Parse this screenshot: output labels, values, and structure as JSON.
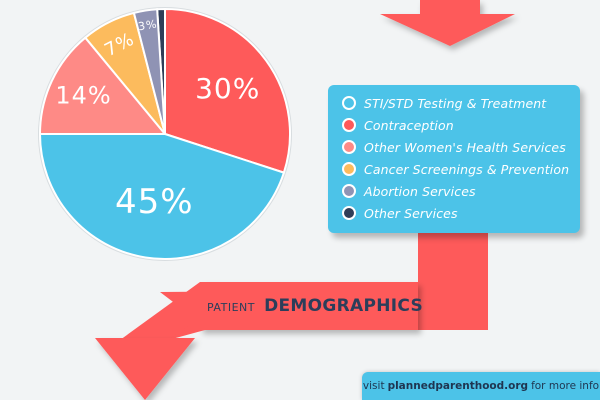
{
  "chart_data": {
    "type": "pie",
    "categories": [
      "STI/STD Testing & Treatment",
      "Contraception",
      "Other Women's Health Services",
      "Cancer Screenings & Prevention",
      "Abortion Services",
      "Other Services"
    ],
    "values": [
      45,
      30,
      14,
      7,
      3,
      1
    ],
    "labels": [
      "45%",
      "30%",
      "14%",
      "7%",
      "3%",
      ""
    ],
    "colors": [
      "#4cc3e8",
      "#fe5a5a",
      "#fe8a86",
      "#fcbb5d",
      "#8f93b4",
      "#2f3e58"
    ],
    "legend_position": "right"
  },
  "legend": {
    "items": [
      {
        "label": "STI/STD Testing & Treatment",
        "color": "#4cc3e8"
      },
      {
        "label": "Contraception",
        "color": "#fe5a5a"
      },
      {
        "label": "Other Women's Health Services",
        "color": "#fe8a86"
      },
      {
        "label": "Cancer Screenings & Prevention",
        "color": "#fcbb5d"
      },
      {
        "label": "Abortion Services",
        "color": "#8f93b4"
      },
      {
        "label": "Other Services",
        "color": "#2f3e58"
      }
    ]
  },
  "section": {
    "small": "PATIENT",
    "big": "DEMOGRAPHICS"
  },
  "footer": {
    "prefix": "visit",
    "url": "plannedparenthood.org",
    "suffix": "for more info"
  }
}
